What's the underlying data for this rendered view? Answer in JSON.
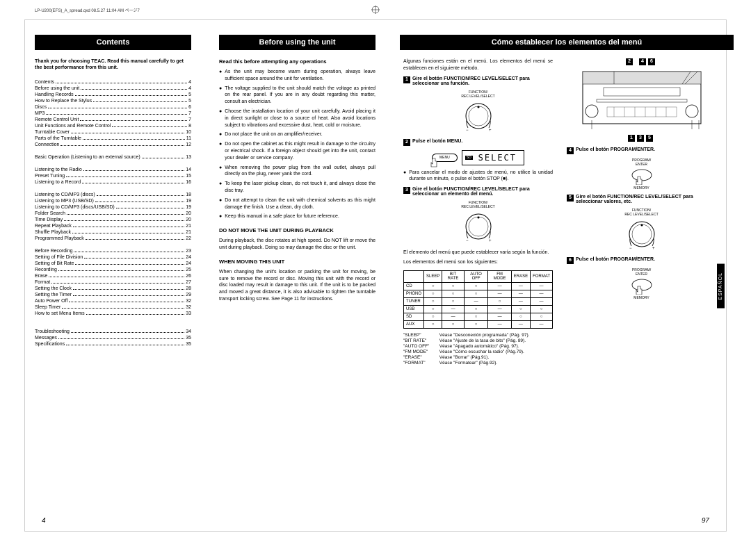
{
  "header_info": "LP-U200(EFS)_A_spread.qxd  08.5.27  11:04 AM  ページ7",
  "col1": {
    "header": "Contents",
    "intro": "Thank you for choosing TEAC. Read this manual carefully to get the best performance from this unit.",
    "toc": [
      {
        "t": "Contents",
        "p": "4"
      },
      {
        "t": "Before using the unit",
        "p": "4"
      },
      {
        "t": "Handling Records",
        "p": "5"
      },
      {
        "t": "How to Replace the Stylus",
        "p": "5"
      },
      {
        "t": "Discs",
        "p": "6"
      },
      {
        "t": "MP3",
        "p": "7"
      },
      {
        "t": "Remote Control Unit",
        "p": "7"
      },
      {
        "t": "Unit Functions and Remote Control",
        "p": "8"
      },
      {
        "t": "Turntable Cover",
        "p": "10"
      },
      {
        "t": "Parts of the Turntable",
        "p": "11"
      },
      {
        "t": "Connection",
        "p": "12"
      },
      {
        "gap": true
      },
      {
        "t": "Basic Operation (Listening to an external source)",
        "p": "13"
      },
      {
        "gap": true
      },
      {
        "t": "Listening to the Radio",
        "p": "14"
      },
      {
        "t": "Preset Tuning",
        "p": "15"
      },
      {
        "t": "Listening to a Record",
        "p": "16"
      },
      {
        "gap": true
      },
      {
        "t": "Listening to CD/MP3 (discs)",
        "p": "18"
      },
      {
        "t": "Listening to MP3 (USB/SD)",
        "p": "19"
      },
      {
        "t": "Listening to CD/MP3 (discs/USB/SD)",
        "p": "19"
      },
      {
        "t": "Folder Search",
        "p": "20"
      },
      {
        "t": "Time Display",
        "p": "20"
      },
      {
        "t": "Repeat Playback",
        "p": "21"
      },
      {
        "t": "Shuffle Playback",
        "p": "21"
      },
      {
        "t": "Programmed Playback",
        "p": "22"
      },
      {
        "gap": true
      },
      {
        "t": "Before Recording",
        "p": "23"
      },
      {
        "t": "Setting of File Division",
        "p": "24"
      },
      {
        "t": "Setting of Bit Rate",
        "p": "24"
      },
      {
        "t": "Recording",
        "p": "25"
      },
      {
        "t": "Erase",
        "p": "26"
      },
      {
        "t": "Format",
        "p": "27"
      },
      {
        "t": "Setting the Clock",
        "p": "28"
      },
      {
        "t": "Setting the Timer",
        "p": "29"
      },
      {
        "t": "Auto Power Off",
        "p": "32"
      },
      {
        "t": "Sleep Timer",
        "p": "32"
      },
      {
        "t": "How to set Menu Items",
        "p": "33"
      },
      {
        "gap": true
      },
      {
        "gap": true
      },
      {
        "t": "Troubleshooting",
        "p": "34"
      },
      {
        "t": "Messages",
        "p": "35"
      },
      {
        "t": "Specifications",
        "p": "35"
      }
    ]
  },
  "col2": {
    "header": "Before using the unit",
    "subhead1": "Read this before attempting any operations",
    "bullets1": [
      "As the unit may become warm during operation, always leave sufficient space around the unit for ventilation.",
      "The voltage supplied to the unit should match the voltage as printed on the rear panel. If you are in any doubt regarding this matter, consult an electrician.",
      "Choose the installation location of your unit carefully. Avoid placing it in direct sunlight or close to a source of heat. Also avoid locations subject to vibrations and excessive dust, heat, cold or moisture.",
      "Do not place the unit on an amplifier/receiver.",
      "Do not open the cabinet as this might result in damage to the circuitry or electrical shock. If a foreign object should get into the unit, contact your dealer or service company.",
      "When removing the power plug from the wall outlet, always pull directly on the plug, never yank the cord.",
      "To keep the laser pickup clean, do not touch it, and always close the disc tray.",
      "Do not attempt to clean the unit with chemical solvents as this might damage the finish. Use a clean, dry cloth.",
      "Keep this manual in a safe place for future reference."
    ],
    "subhead2": "DO NOT MOVE THE UNIT DURING PLAYBACK",
    "para2": "During playback, the disc rotates at high speed. Do NOT lift or move the unit during playback. Doing so may damage the disc or the unit.",
    "subhead3": "WHEN MOVING THIS UNIT",
    "para3": "When changing the unit's location or packing the unit for moving, be sure to remove the record or disc. Moving this unit with the record or disc loaded may result in damage to this unit. If the unit is to be packed and moved a great distance, it is also advisable to tighten the turntable transport locking screw. See Page 11 for instructions."
  },
  "col34": {
    "header": "Cómo establecer los elementos del menú",
    "intro": "Algunas funciones están en el menú. Los elementos del menú se establecen en el siguiente método.",
    "step1": "Gire el botón FUNCTION/REC LEVEL/SELECT para seleccionar una función.",
    "dial_label": "FUNCTION/\nREC LEVEL/SELECT",
    "step2": "Pulse el botón MENU.",
    "menu_btn": "MENU",
    "display_text": "SELECT",
    "step2_note": "Para cancelar el modo de ajustes de menú, no utilice la unidad durante un minuto, o pulse el botón STOP (■).",
    "step3": "Gire el botón FUNCTION/REC LEVEL/SELECT para seleccionar un elemento del menú.",
    "para_after3": "El elemento del menú que puede establecer varía según la función.",
    "para_table_intro": "Los elementos del menú son los siguientes:",
    "table": {
      "cols": [
        "",
        "SLEEP",
        "BIT RATE",
        "AUTO OFF",
        "FM MODE",
        "ERASE",
        "FORMAT"
      ],
      "rows": [
        [
          "CD",
          "○",
          "○",
          "○",
          "—",
          "—",
          "—"
        ],
        [
          "PHONO",
          "○",
          "○",
          "○",
          "—",
          "—",
          "—"
        ],
        [
          "TUNER",
          "○",
          "○",
          "—",
          "○",
          "—",
          "—"
        ],
        [
          "USB",
          "○",
          "—",
          "○",
          "—",
          "○",
          "○"
        ],
        [
          "SD",
          "○",
          "—",
          "○",
          "—",
          "○",
          "○"
        ],
        [
          "AUX",
          "○",
          "○",
          "○",
          "—",
          "—",
          "—"
        ]
      ]
    },
    "refs": [
      {
        "k": "\"SLEEP\"",
        "v": "Véase \"Desconexión programada\" (Pág. 97)."
      },
      {
        "k": "\"BIT RATE\"",
        "v": "Véase \"Ajuste de la tasa de bits\" (Pág. 89)."
      },
      {
        "k": "\"AUTO OFF\"",
        "v": "Véase \"Apagado automático\" (Pág. 97)."
      },
      {
        "k": "\"FM MODE\"",
        "v": "Véase \"Cómo escuchar la radio\" (Pág.79)."
      },
      {
        "k": "\"ERASE\"",
        "v": "Véase \"Borrar\" (Pág.91)."
      },
      {
        "k": "\"FORMAT\"",
        "v": "Véase \"Formatear\" (Pág.92)."
      }
    ],
    "markers_top": "2   4 6",
    "markers_bot": "1 3 5",
    "step4": "Pulse el botón PROGRAM/ENTER.",
    "btn4_top": "PROGRAM/\nENTER",
    "btn4_bot": "MEMORY",
    "step5": "Gire el botón FUNCTION/REC LEVEL/SELECT para seleccionar valores, etc.",
    "step6": "Pulse el botón PROGRAM/ENTER."
  },
  "side_tab": "ESPAÑOL",
  "page_left": "4",
  "page_right": "97"
}
